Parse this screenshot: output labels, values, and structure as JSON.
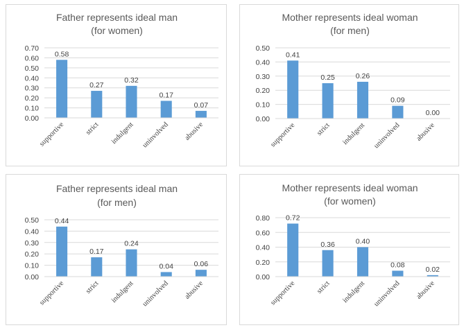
{
  "chart_data": [
    {
      "type": "bar",
      "title": [
        "Father represents ideal man",
        "(for women)"
      ],
      "categories": [
        "supportive",
        "strict",
        "indulgent",
        "uninvolved",
        "abusive"
      ],
      "values": [
        0.58,
        0.27,
        0.32,
        0.17,
        0.07
      ],
      "value_labels": [
        "0.58",
        "0.27",
        "0.32",
        "0.17",
        "0.07"
      ],
      "ylim": [
        0,
        0.7
      ],
      "yticks": [
        "0.00",
        "0.10",
        "0.20",
        "0.30",
        "0.40",
        "0.50",
        "0.60",
        "0.70"
      ],
      "grid": true,
      "bar_color": "#5b9bd5"
    },
    {
      "type": "bar",
      "title": [
        "Mother represents ideal woman",
        "(for men)"
      ],
      "categories": [
        "supportive",
        "strict",
        "indulgent",
        "uninvolved",
        "abusive"
      ],
      "values": [
        0.41,
        0.25,
        0.26,
        0.09,
        0.0
      ],
      "value_labels": [
        "0.41",
        "0.25",
        "0.26",
        "0.09",
        "0.00"
      ],
      "ylim": [
        0,
        0.5
      ],
      "yticks": [
        "0.00",
        "0.10",
        "0.20",
        "0.30",
        "0.40",
        "0.50"
      ],
      "grid": true,
      "bar_color": "#5b9bd5"
    },
    {
      "type": "bar",
      "title": [
        "Father represents ideal man",
        "(for men)"
      ],
      "categories": [
        "supportive",
        "strict",
        "indulgent",
        "uninvolved",
        "abusive"
      ],
      "values": [
        0.44,
        0.17,
        0.24,
        0.04,
        0.06
      ],
      "value_labels": [
        "0.44",
        "0.17",
        "0.24",
        "0.04",
        "0.06"
      ],
      "ylim": [
        0,
        0.5
      ],
      "yticks": [
        "0.00",
        "0.10",
        "0.20",
        "0.30",
        "0.40",
        "0.50"
      ],
      "grid": true,
      "bar_color": "#5b9bd5"
    },
    {
      "type": "bar",
      "title": [
        "Mother represents ideal woman",
        "(for women)"
      ],
      "categories": [
        "supportive",
        "strict",
        "indulgent",
        "uninvolved",
        "abusive"
      ],
      "values": [
        0.72,
        0.36,
        0.4,
        0.08,
        0.02
      ],
      "value_labels": [
        "0.72",
        "0.36",
        "0.40",
        "0.08",
        "0.02"
      ],
      "ylim": [
        0,
        0.8
      ],
      "yticks": [
        "0.00",
        "0.20",
        "0.40",
        "0.60",
        "0.80"
      ],
      "grid": true,
      "bar_color": "#5b9bd5"
    }
  ],
  "colors": {
    "grid": "#d9d9d9",
    "text": "#404040",
    "title": "#595959",
    "border": "#d9d9d9"
  }
}
